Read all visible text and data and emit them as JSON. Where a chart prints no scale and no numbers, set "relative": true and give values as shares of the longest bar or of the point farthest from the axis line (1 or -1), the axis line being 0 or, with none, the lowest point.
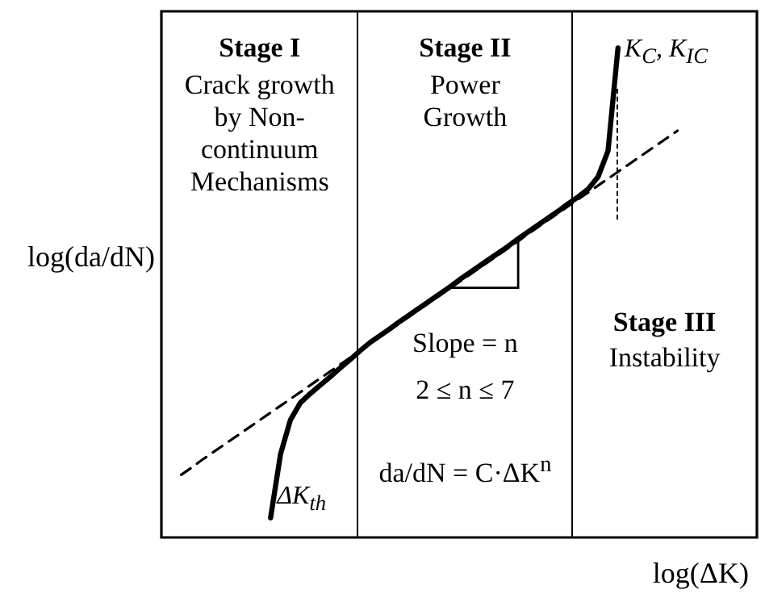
{
  "chart_data": {
    "type": "line",
    "relative": true,
    "xlabel": "log(ΔK)",
    "ylabel": "log(da/dN)",
    "categories": [
      null,
      null,
      null,
      null,
      null,
      null,
      null,
      null,
      null,
      null,
      null,
      null,
      null,
      null,
      null,
      null,
      null,
      null,
      null,
      null,
      null,
      null,
      null,
      null,
      null,
      null,
      null,
      null,
      null,
      null,
      null,
      null,
      null,
      null,
      null,
      null,
      null,
      null,
      null,
      null,
      null,
      null,
      null,
      null,
      null,
      null,
      null,
      null,
      null,
      null,
      null,
      null,
      null,
      null,
      null,
      null,
      null,
      null,
      null,
      null,
      null
    ],
    "series": [
      {
        "color": "#000000",
        "line_style": "solid",
        "values": [
          null,
          null,
          null,
          null,
          null,
          null,
          null,
          null,
          null,
          null,
          null,
          0.04,
          0.17,
          0.24,
          0.275,
          0.294,
          0.311,
          0.328,
          0.346,
          0.363,
          0.381,
          0.398,
          0.412,
          0.426,
          0.441,
          0.455,
          0.469,
          0.483,
          0.497,
          0.511,
          0.526,
          0.54,
          0.554,
          0.568,
          0.582,
          0.596,
          0.611,
          0.625,
          0.639,
          0.653,
          0.667,
          0.682,
          0.696,
          0.712,
          0.737,
          0.79,
          1.0,
          null,
          null,
          null,
          null,
          null,
          null,
          null,
          null,
          null,
          null,
          null,
          null,
          null,
          null
        ]
      },
      {
        "color": "#000000",
        "line_style": "dashed",
        "values": [
          null,
          null,
          0.128,
          0.142,
          0.157,
          0.171,
          0.185,
          0.199,
          0.213,
          0.227,
          0.241,
          0.255,
          0.269,
          0.283,
          0.297,
          0.311,
          0.325,
          0.339,
          0.353,
          0.367,
          0.382,
          0.396,
          0.41,
          0.424,
          0.438,
          0.452,
          0.466,
          0.48,
          0.494,
          0.508,
          0.522,
          0.536,
          0.55,
          0.564,
          0.578,
          0.592,
          0.606,
          0.621,
          0.635,
          0.649,
          0.663,
          0.677,
          0.691,
          0.705,
          0.719,
          0.733,
          0.747,
          0.761,
          0.775,
          0.789,
          0.803,
          0.817,
          0.831,
          null,
          null,
          null,
          null,
          null,
          null,
          null,
          null
        ]
      }
    ],
    "annotations": [
      "Stage I",
      "Crack growth by Non-continuum Mechanisms",
      "Stage II",
      "Power Growth",
      "Slope = n",
      "2 ≤ n ≤ 7",
      "da/dN = C·ΔK$^{n}$",
      "Stage III",
      "Instability",
      "ΔK$_{th}$",
      "K$_{C}$, K$_{IC}$"
    ]
  }
}
